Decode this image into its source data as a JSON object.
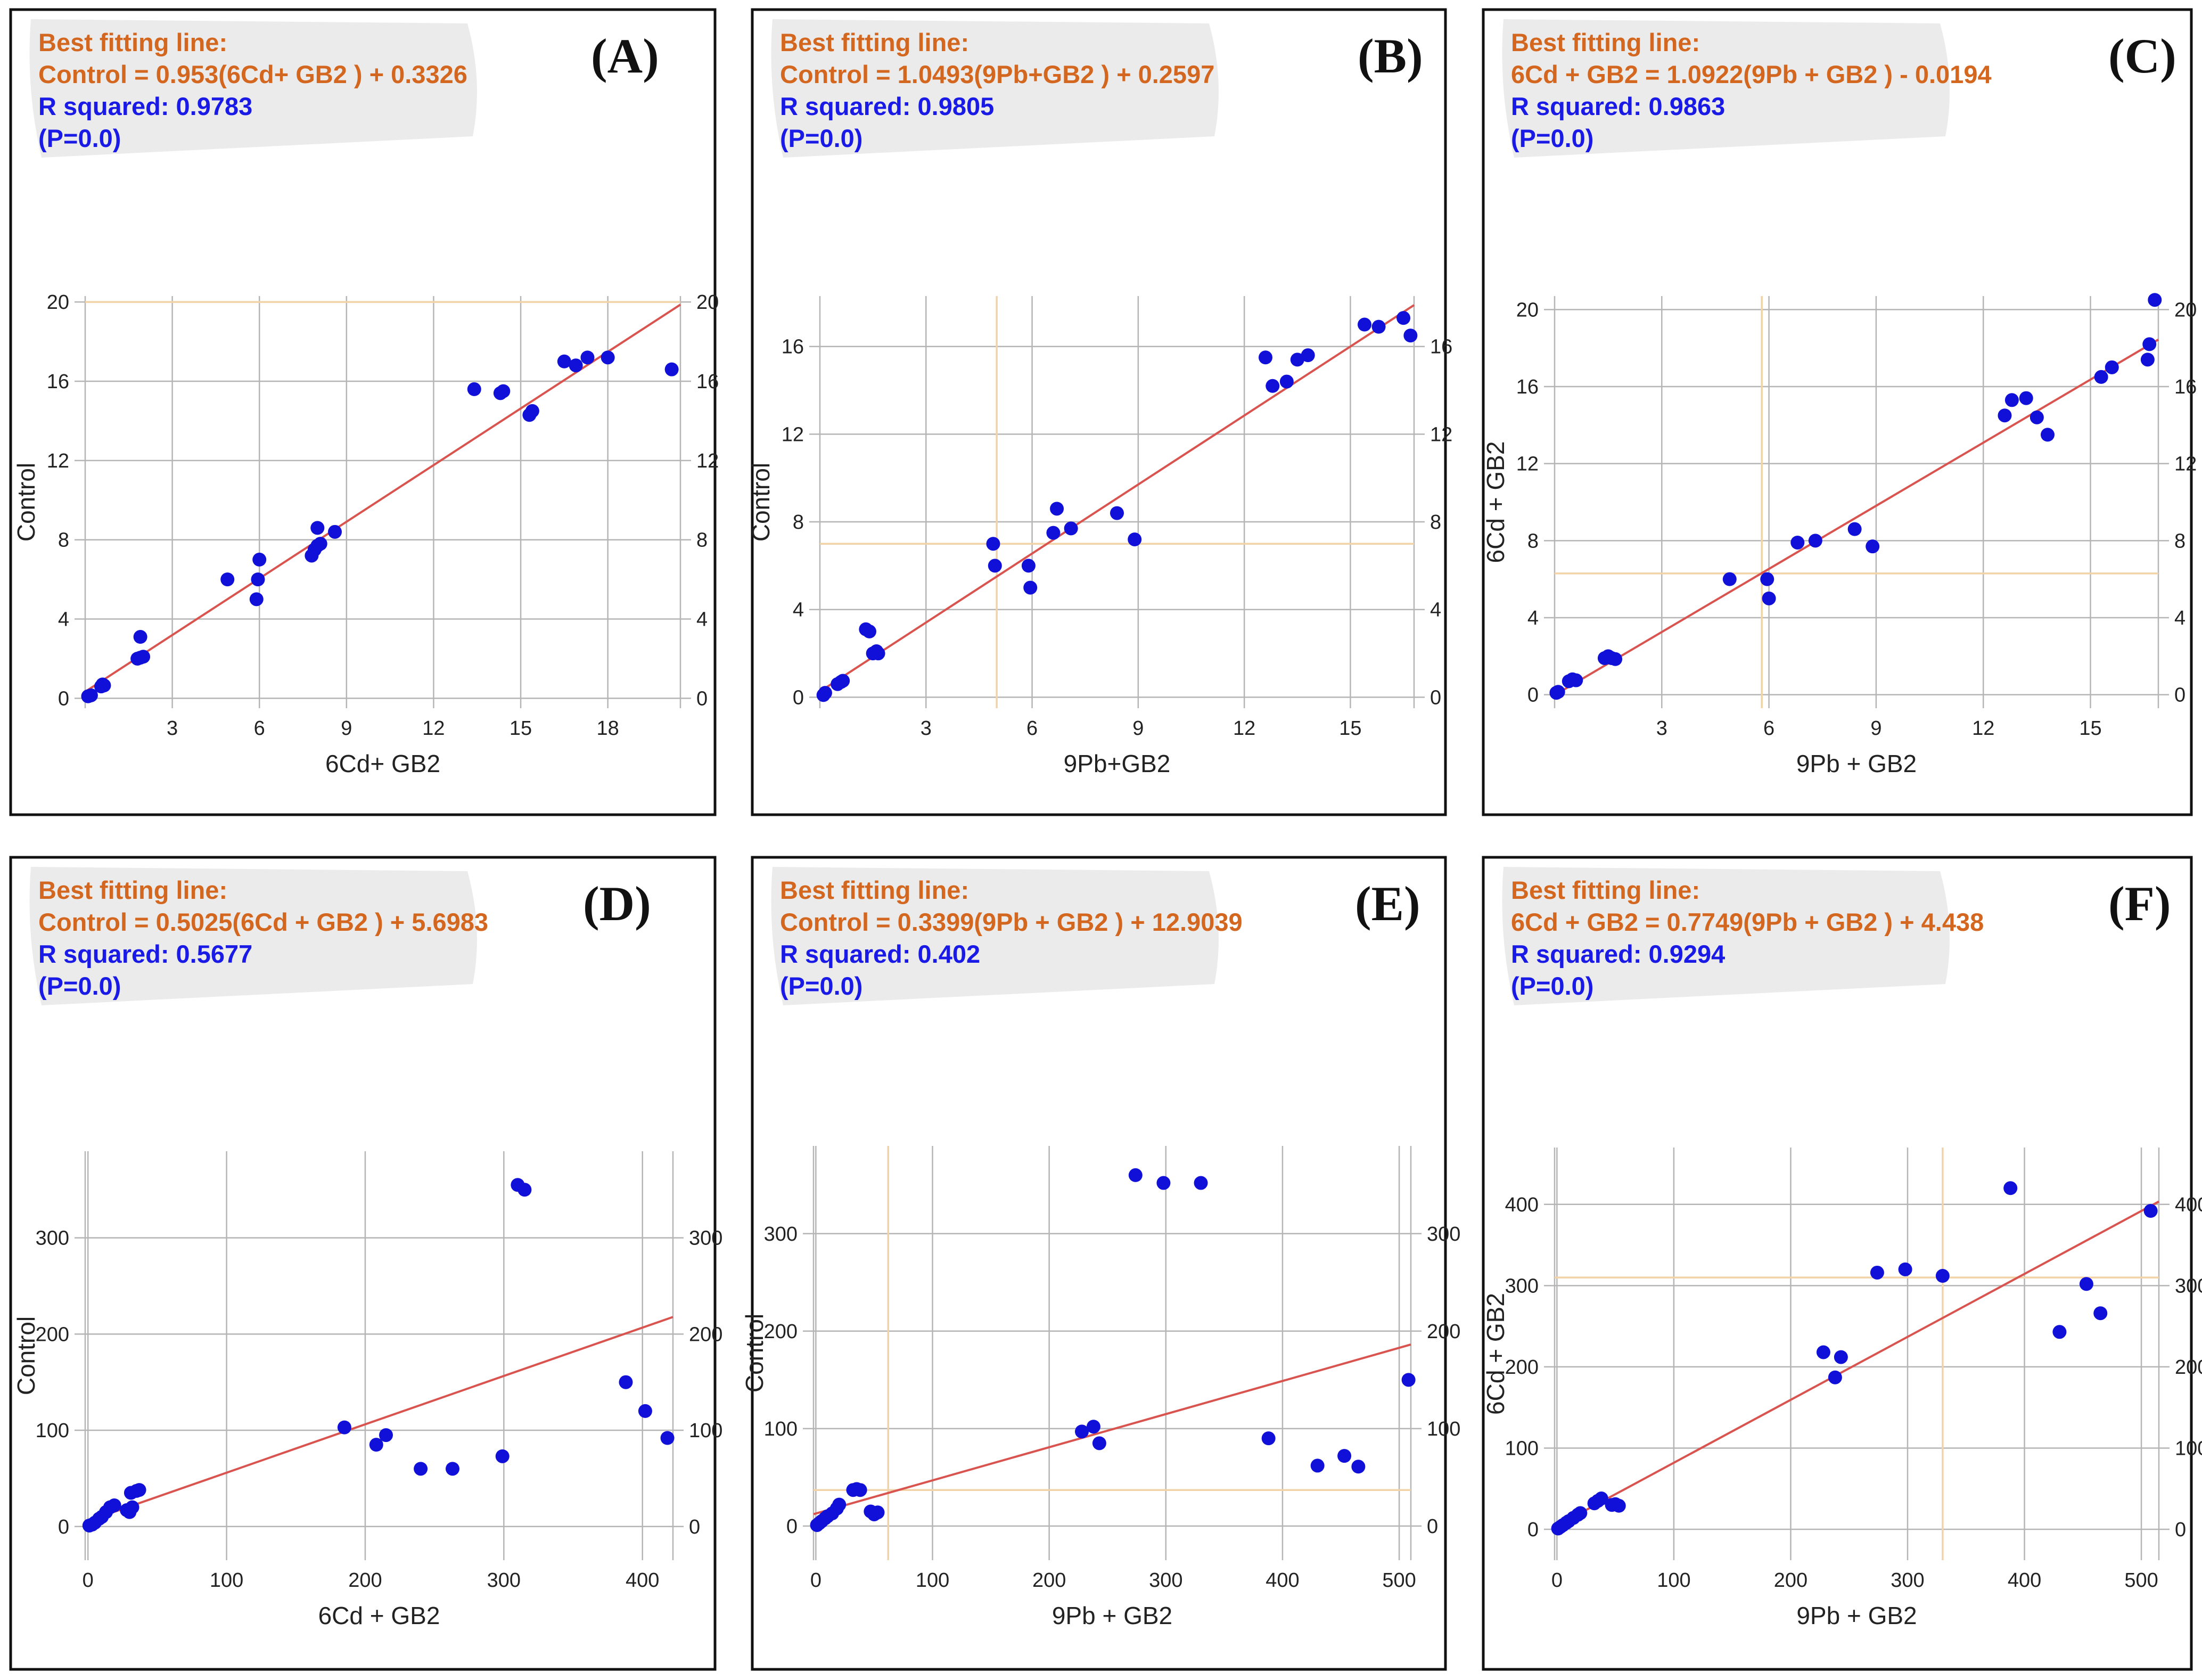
{
  "colors": {
    "equation": "#d4671f",
    "rsq": "#1a1ae6",
    "point": "#1010d8",
    "fit_line": "#d9534f",
    "ref_line": "#f2d3a8",
    "grid": "#b5b5b5",
    "border": "#111111",
    "label_bg": "#ebebeb"
  },
  "chart_data": [
    {
      "type": "scatter",
      "label": "(A)",
      "header": "Best fitting line:",
      "equation": "Control  = 0.953(6Cd+ GB2 ) + 0.3326",
      "rsquared": "R squared: 0.9783",
      "pvalue": "(P=0.0)",
      "xlabel": "6Cd+ GB2",
      "ylabel": "Control",
      "xlim": [
        0,
        20.5
      ],
      "ylim": [
        -0.5,
        20.3
      ],
      "xticks": [
        3,
        6,
        9,
        12,
        15,
        18
      ],
      "yticks": [
        0,
        4,
        8,
        12,
        16,
        20
      ],
      "fit": {
        "slope": 0.953,
        "intercept": 0.3326
      },
      "ref_h": 20,
      "ref_v": null,
      "points": [
        [
          0.1,
          0.1
        ],
        [
          0.2,
          0.15
        ],
        [
          0.55,
          0.6
        ],
        [
          0.6,
          0.7
        ],
        [
          0.65,
          0.65
        ],
        [
          1.8,
          2.0
        ],
        [
          1.9,
          2.05
        ],
        [
          2.0,
          2.1
        ],
        [
          1.9,
          3.1
        ],
        [
          4.9,
          6.0
        ],
        [
          5.9,
          5.0
        ],
        [
          5.95,
          6.0
        ],
        [
          6.0,
          7.0
        ],
        [
          7.8,
          7.2
        ],
        [
          7.9,
          7.5
        ],
        [
          8.0,
          7.7
        ],
        [
          8.1,
          7.8
        ],
        [
          8.0,
          8.6
        ],
        [
          8.6,
          8.4
        ],
        [
          13.4,
          15.6
        ],
        [
          14.3,
          15.4
        ],
        [
          14.4,
          15.5
        ],
        [
          15.3,
          14.3
        ],
        [
          15.4,
          14.5
        ],
        [
          16.5,
          17.0
        ],
        [
          16.9,
          16.8
        ],
        [
          17.3,
          17.2
        ],
        [
          18.0,
          17.2
        ],
        [
          20.2,
          16.6
        ]
      ]
    },
    {
      "type": "scatter",
      "label": "(B)",
      "header": "Best fitting line:",
      "equation": "Control  = 1.0493(9Pb+GB2 ) + 0.2597",
      "rsquared": "R squared: 0.9805",
      "pvalue": "(P=0.0)",
      "xlabel": "9Pb+GB2",
      "ylabel": "Control",
      "xlim": [
        0,
        16.8
      ],
      "ylim": [
        -0.5,
        18.3
      ],
      "xticks": [
        3,
        6,
        9,
        12,
        15
      ],
      "yticks": [
        0,
        4,
        8,
        12,
        16
      ],
      "fit": {
        "slope": 1.0493,
        "intercept": 0.2597
      },
      "ref_h": 7.0,
      "ref_v": 5.0,
      "points": [
        [
          0.1,
          0.1
        ],
        [
          0.15,
          0.2
        ],
        [
          0.5,
          0.6
        ],
        [
          0.6,
          0.7
        ],
        [
          0.65,
          0.75
        ],
        [
          1.3,
          3.1
        ],
        [
          1.4,
          3.0
        ],
        [
          1.5,
          2.0
        ],
        [
          1.6,
          2.1
        ],
        [
          1.65,
          2.0
        ],
        [
          4.9,
          7.0
        ],
        [
          4.95,
          6.0
        ],
        [
          5.9,
          6.0
        ],
        [
          5.95,
          5.0
        ],
        [
          6.6,
          7.5
        ],
        [
          6.7,
          8.6
        ],
        [
          7.1,
          7.7
        ],
        [
          8.4,
          8.4
        ],
        [
          8.9,
          7.2
        ],
        [
          12.6,
          15.5
        ],
        [
          12.8,
          14.2
        ],
        [
          13.2,
          14.4
        ],
        [
          13.5,
          15.4
        ],
        [
          13.8,
          15.6
        ],
        [
          15.4,
          17.0
        ],
        [
          15.8,
          16.9
        ],
        [
          16.5,
          17.3
        ],
        [
          16.7,
          16.5
        ]
      ]
    },
    {
      "type": "scatter",
      "label": "(C)",
      "header": "Best fitting line:",
      "equation": "6Cd + GB2  = 1.0922(9Pb + GB2 ) - 0.0194",
      "rsquared": "R squared: 0.9863",
      "pvalue": "(P=0.0)",
      "xlabel": "9Pb + GB2",
      "ylabel": "6Cd + GB2",
      "xlim": [
        0,
        16.9
      ],
      "ylim": [
        -0.7,
        20.7
      ],
      "xticks": [
        3,
        6,
        9,
        12,
        15
      ],
      "yticks": [
        0,
        4,
        8,
        12,
        16,
        20
      ],
      "fit": {
        "slope": 1.0922,
        "intercept": -0.0194
      },
      "ref_h": 6.3,
      "ref_v": 5.8,
      "points": [
        [
          0.05,
          0.1
        ],
        [
          0.1,
          0.15
        ],
        [
          0.4,
          0.7
        ],
        [
          0.5,
          0.8
        ],
        [
          0.6,
          0.75
        ],
        [
          1.4,
          1.9
        ],
        [
          1.5,
          2.0
        ],
        [
          1.6,
          1.9
        ],
        [
          1.7,
          1.85
        ],
        [
          4.9,
          6.0
        ],
        [
          5.95,
          6.0
        ],
        [
          6.0,
          5.0
        ],
        [
          6.8,
          7.9
        ],
        [
          7.3,
          8.0
        ],
        [
          8.4,
          8.6
        ],
        [
          8.9,
          7.7
        ],
        [
          12.6,
          14.5
        ],
        [
          12.8,
          15.3
        ],
        [
          13.2,
          15.4
        ],
        [
          13.5,
          14.4
        ],
        [
          13.8,
          13.5
        ],
        [
          15.3,
          16.5
        ],
        [
          15.6,
          17.0
        ],
        [
          16.6,
          17.4
        ],
        [
          16.65,
          18.2
        ],
        [
          16.8,
          20.5
        ]
      ]
    },
    {
      "type": "scatter",
      "label": "(D)",
      "header": "Best fitting line:",
      "equation": "Control  = 0.5025(6Cd + GB2 ) + 5.6983",
      "rsquared": "R squared: 0.5677",
      "pvalue": "(P=0.0)",
      "xlabel": "6Cd + GB2",
      "ylabel": "Control",
      "xlim": [
        -2,
        422
      ],
      "ylim": [
        -35,
        390
      ],
      "xticks": [
        0,
        100,
        200,
        300,
        400
      ],
      "yticks": [
        0,
        100,
        200,
        300
      ],
      "fit": {
        "slope": 0.5025,
        "intercept": 5.6983
      },
      "ref_h": null,
      "ref_v": null,
      "points": [
        [
          1,
          1
        ],
        [
          3,
          2
        ],
        [
          5,
          4
        ],
        [
          8,
          8
        ],
        [
          10,
          10
        ],
        [
          13,
          15
        ],
        [
          16,
          20
        ],
        [
          19,
          22
        ],
        [
          28,
          17
        ],
        [
          30,
          15
        ],
        [
          32,
          20
        ],
        [
          31,
          35
        ],
        [
          35,
          37
        ],
        [
          37,
          38
        ],
        [
          185,
          103
        ],
        [
          208,
          85
        ],
        [
          215,
          95
        ],
        [
          240,
          60
        ],
        [
          263,
          60
        ],
        [
          299,
          73
        ],
        [
          310,
          355
        ],
        [
          315,
          350
        ],
        [
          388,
          150
        ],
        [
          402,
          120
        ],
        [
          418,
          92
        ]
      ]
    },
    {
      "type": "scatter",
      "label": "(E)",
      "header": "Best fitting line:",
      "equation": "Control  = 0.3399(9Pb + GB2  ) + 12.9039",
      "rsquared": "R squared: 0.402",
      "pvalue": "(P=0.0)",
      "xlabel": "9Pb + GB2",
      "ylabel": "Control",
      "xlim": [
        -2,
        510
      ],
      "ylim": [
        -35,
        390
      ],
      "xticks": [
        0,
        100,
        200,
        300,
        400,
        500
      ],
      "yticks": [
        0,
        100,
        200,
        300
      ],
      "fit": {
        "slope": 0.3399,
        "intercept": 12.9039
      },
      "ref_h": 37,
      "ref_v": 62,
      "points": [
        [
          1,
          1
        ],
        [
          3,
          3
        ],
        [
          5,
          5
        ],
        [
          8,
          8
        ],
        [
          10,
          10
        ],
        [
          14,
          13
        ],
        [
          18,
          18
        ],
        [
          20,
          22
        ],
        [
          32,
          37
        ],
        [
          35,
          38
        ],
        [
          38,
          37
        ],
        [
          47,
          15
        ],
        [
          50,
          12
        ],
        [
          53,
          14
        ],
        [
          228,
          97
        ],
        [
          238,
          102
        ],
        [
          243,
          85
        ],
        [
          274,
          360
        ],
        [
          298,
          352
        ],
        [
          330,
          352
        ],
        [
          388,
          90
        ],
        [
          430,
          62
        ],
        [
          453,
          72
        ],
        [
          465,
          61
        ],
        [
          508,
          150
        ]
      ]
    },
    {
      "type": "scatter",
      "label": "(F)",
      "header": "Best fitting line:",
      "equation": "6Cd + GB2  = 0.7749(9Pb + GB2 ) + 4.438",
      "rsquared": "R squared: 0.9294",
      "pvalue": "(P=0.0)",
      "xlabel": "9Pb + GB2",
      "ylabel": "6Cd + GB2",
      "xlim": [
        -2,
        515
      ],
      "ylim": [
        -38,
        470
      ],
      "xticks": [
        0,
        100,
        200,
        300,
        400,
        500
      ],
      "yticks": [
        0,
        100,
        200,
        300,
        400
      ],
      "fit": {
        "slope": 0.7749,
        "intercept": 4.438
      },
      "ref_h": 310,
      "ref_v": 330,
      "points": [
        [
          1,
          1
        ],
        [
          3,
          3
        ],
        [
          5,
          5
        ],
        [
          8,
          8
        ],
        [
          10,
          10
        ],
        [
          14,
          14
        ],
        [
          18,
          18
        ],
        [
          20,
          20
        ],
        [
          32,
          32
        ],
        [
          35,
          35
        ],
        [
          38,
          38
        ],
        [
          47,
          30
        ],
        [
          50,
          31
        ],
        [
          53,
          29
        ],
        [
          228,
          218
        ],
        [
          238,
          187
        ],
        [
          243,
          212
        ],
        [
          274,
          316
        ],
        [
          298,
          320
        ],
        [
          330,
          312
        ],
        [
          388,
          420
        ],
        [
          430,
          243
        ],
        [
          453,
          302
        ],
        [
          465,
          266
        ],
        [
          508,
          392
        ]
      ]
    }
  ]
}
